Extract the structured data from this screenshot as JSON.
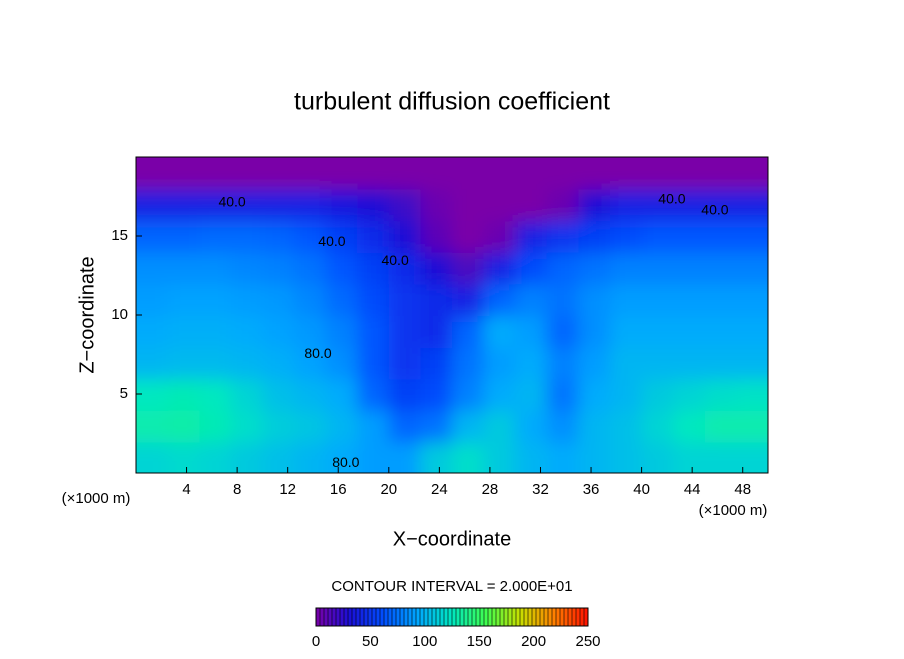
{
  "chart_data": {
    "type": "contour",
    "title": "turbulent diffusion coefficient",
    "x_label": "X−coordinate",
    "y_label": "Z−coordinate",
    "x_unit_label": "(×1000 m)",
    "y_unit_label": "(×1000 m)",
    "xlim": [
      0,
      50
    ],
    "ylim": [
      0,
      20
    ],
    "xticks": [
      4,
      8,
      12,
      16,
      20,
      24,
      28,
      32,
      36,
      40,
      44,
      48
    ],
    "yticks": [
      5,
      10,
      15
    ],
    "z": [
      [
        115,
        118,
        115,
        110,
        105,
        100,
        95,
        90,
        90,
        110,
        120,
        110,
        100,
        95,
        100,
        105,
        110,
        115,
        115,
        115
      ],
      [
        130,
        132,
        128,
        120,
        112,
        108,
        100,
        90,
        70,
        75,
        100,
        110,
        95,
        85,
        100,
        105,
        115,
        125,
        130,
        130
      ],
      [
        125,
        128,
        125,
        115,
        105,
        100,
        95,
        70,
        55,
        60,
        80,
        95,
        100,
        75,
        95,
        100,
        110,
        115,
        120,
        122
      ],
      [
        100,
        102,
        102,
        100,
        97,
        92,
        85,
        65,
        50,
        55,
        75,
        90,
        95,
        80,
        90,
        100,
        100,
        100,
        100,
        100
      ],
      [
        95,
        97,
        97,
        95,
        92,
        88,
        80,
        65,
        50,
        45,
        70,
        95,
        90,
        70,
        85,
        95,
        95,
        95,
        95,
        95
      ],
      [
        90,
        92,
        92,
        90,
        88,
        82,
        72,
        60,
        50,
        45,
        40,
        70,
        80,
        75,
        85,
        90,
        90,
        90,
        90,
        90
      ],
      [
        85,
        85,
        85,
        82,
        80,
        75,
        65,
        55,
        45,
        30,
        15,
        40,
        60,
        70,
        75,
        80,
        80,
        80,
        80,
        80
      ],
      [
        70,
        70,
        72,
        72,
        70,
        65,
        55,
        45,
        30,
        10,
        0,
        5,
        40,
        50,
        55,
        60,
        65,
        65,
        65,
        65
      ],
      [
        40,
        40,
        40,
        40,
        40,
        40,
        35,
        30,
        20,
        5,
        0,
        0,
        0,
        5,
        30,
        40,
        40,
        40,
        40,
        40
      ],
      [
        0,
        0,
        0,
        0,
        0,
        0,
        0,
        0,
        0,
        0,
        0,
        0,
        0,
        0,
        0,
        0,
        0,
        0,
        0,
        0
      ]
    ],
    "colormap": [
      "#7a00a8",
      "#1a10d8",
      "#0050ff",
      "#00a8ff",
      "#00e8c0",
      "#40ff50",
      "#c8e000",
      "#ff8000",
      "#ff1000"
    ],
    "clim": [
      0,
      250
    ],
    "cticks": [
      0,
      50,
      100,
      150,
      200,
      250
    ],
    "contour_interval_label": "CONTOUR INTERVAL = 2.000E+01",
    "annotations": [
      {
        "text": "40.0",
        "x": 7.6,
        "y": 17.1
      },
      {
        "text": "40.0",
        "x": 15.5,
        "y": 14.6
      },
      {
        "text": "40.0",
        "x": 20.5,
        "y": 13.4
      },
      {
        "text": "80.0",
        "x": 14.4,
        "y": 7.5
      },
      {
        "text": "80.0",
        "x": 16.6,
        "y": 0.6
      },
      {
        "text": "40.0",
        "x": 42.4,
        "y": 17.3
      },
      {
        "text": "40.0",
        "x": 45.8,
        "y": 16.6
      }
    ]
  }
}
